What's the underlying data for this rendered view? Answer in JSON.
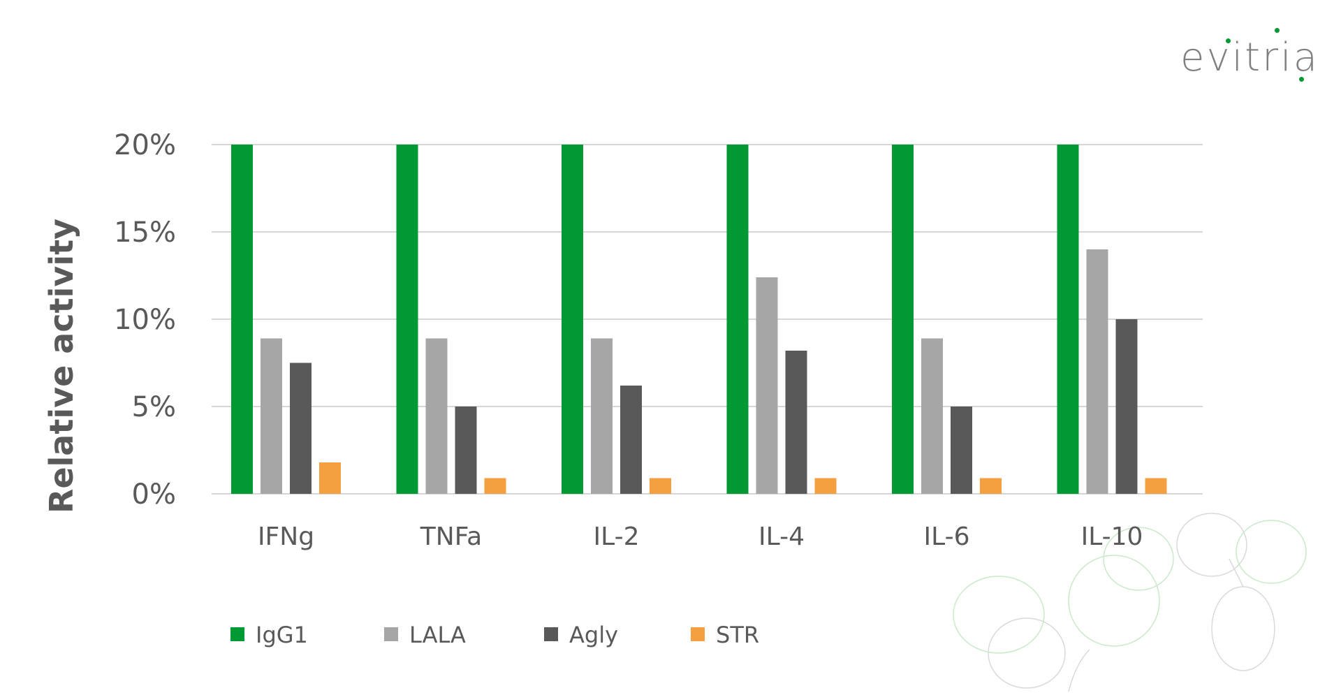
{
  "logo": {
    "text": "evitria",
    "dot_color": "#009933"
  },
  "chart_data": {
    "type": "bar",
    "title": "",
    "xlabel": "",
    "ylabel": "Relative activity",
    "ylim": [
      0,
      20
    ],
    "yticks": [
      0,
      5,
      10,
      15,
      20
    ],
    "ytick_labels": [
      "0%",
      "5%",
      "10%",
      "15%",
      "20%"
    ],
    "grid": true,
    "legend_position": "bottom-left",
    "categories": [
      "IFNg",
      "TNFa",
      "IL-2",
      "IL-4",
      "IL-6",
      "IL-10"
    ],
    "series": [
      {
        "name": "IgG1",
        "color": "#009933",
        "values": [
          20,
          20,
          20,
          20,
          20,
          20
        ]
      },
      {
        "name": "LALA",
        "color": "#a6a6a6",
        "values": [
          8.9,
          8.9,
          8.9,
          12.4,
          8.9,
          14.0
        ]
      },
      {
        "name": "Agly",
        "color": "#595959",
        "values": [
          7.5,
          5.0,
          6.2,
          8.2,
          5.0,
          10.0
        ]
      },
      {
        "name": "STR",
        "color": "#f4a040",
        "values": [
          1.8,
          0.9,
          0.9,
          0.9,
          0.9,
          0.9
        ]
      }
    ]
  }
}
